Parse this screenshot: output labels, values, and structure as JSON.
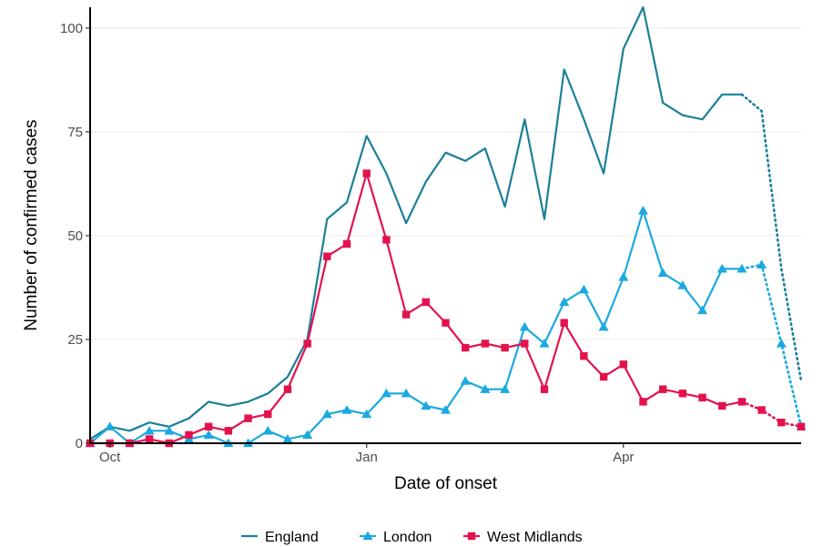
{
  "chart_data": {
    "type": "line",
    "title": "",
    "xlabel": "Date of onset",
    "ylabel": "Number of confirmed cases",
    "ylim": [
      0,
      105
    ],
    "yticks": [
      0,
      25,
      50,
      75,
      100
    ],
    "xticks": [
      {
        "label": "Oct",
        "x": 1
      },
      {
        "label": "Jan",
        "x": 14
      },
      {
        "label": "Apr",
        "x": 27
      }
    ],
    "xlim": [
      0,
      36
    ],
    "grid": "horizontal major",
    "legend_position": "bottom",
    "series": [
      {
        "name": "England",
        "color": "#1b7f99",
        "marker": "none",
        "x": [
          0,
          1,
          2,
          3,
          4,
          5,
          6,
          7,
          8,
          9,
          10,
          11,
          12,
          13,
          14,
          15,
          16,
          17,
          18,
          19,
          20,
          21,
          22,
          23,
          24,
          25,
          26,
          27,
          28,
          29,
          30,
          31,
          32,
          33,
          34,
          35,
          36
        ],
        "values": [
          1,
          4,
          3,
          5,
          4,
          6,
          10,
          9,
          10,
          12,
          16,
          25,
          54,
          58,
          74,
          65,
          53,
          63,
          70,
          68,
          71,
          57,
          78,
          54,
          90,
          78,
          65,
          95,
          105,
          82,
          79,
          78,
          84,
          84,
          80,
          42,
          15
        ],
        "dotted_from_x": 33
      },
      {
        "name": "London",
        "color": "#1aa9e0",
        "marker": "triangle",
        "x": [
          0,
          1,
          2,
          3,
          4,
          5,
          6,
          7,
          8,
          9,
          10,
          11,
          12,
          13,
          14,
          15,
          16,
          17,
          18,
          19,
          20,
          21,
          22,
          23,
          24,
          25,
          26,
          27,
          28,
          29,
          30,
          31,
          32,
          33,
          34,
          35,
          36
        ],
        "values": [
          0,
          4,
          0,
          3,
          3,
          1,
          2,
          0,
          0,
          3,
          1,
          2,
          7,
          8,
          7,
          12,
          12,
          9,
          8,
          15,
          13,
          13,
          28,
          24,
          34,
          37,
          28,
          40,
          56,
          41,
          38,
          32,
          42,
          42,
          43,
          24,
          4
        ],
        "dotted_from_x": 33
      },
      {
        "name": "West Midlands",
        "color": "#e3124d",
        "marker": "square",
        "x": [
          0,
          1,
          2,
          3,
          4,
          5,
          6,
          7,
          8,
          9,
          10,
          11,
          12,
          13,
          14,
          15,
          16,
          17,
          18,
          19,
          20,
          21,
          22,
          23,
          24,
          25,
          26,
          27,
          28,
          29,
          30,
          31,
          32,
          33,
          34,
          35,
          36
        ],
        "values": [
          0,
          0,
          0,
          1,
          0,
          2,
          4,
          3,
          6,
          7,
          13,
          24,
          45,
          48,
          65,
          49,
          31,
          34,
          29,
          23,
          24,
          23,
          24,
          13,
          29,
          21,
          16,
          19,
          10,
          13,
          12,
          11,
          9,
          10,
          8,
          5,
          4
        ],
        "dotted_from_x": 33
      }
    ]
  }
}
